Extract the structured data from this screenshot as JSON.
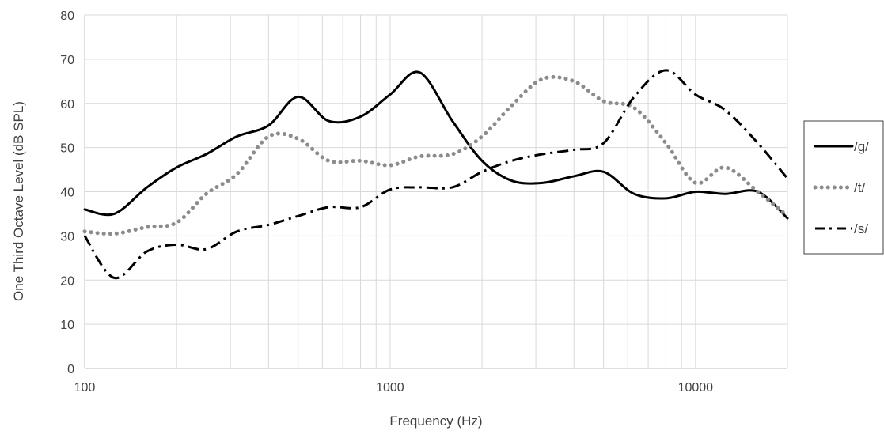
{
  "chart_data": {
    "type": "line",
    "title": "",
    "xlabel": "Frequency (Hz)",
    "ylabel": "One Third Octave Level (dB SPL)",
    "x_scale": "log",
    "xlim": [
      100,
      20000
    ],
    "ylim": [
      0,
      80
    ],
    "x_ticks": [
      100,
      1000,
      10000
    ],
    "y_ticks": [
      0,
      10,
      20,
      30,
      40,
      50,
      60,
      70,
      80
    ],
    "grid": true,
    "legend_position": "right",
    "series": [
      {
        "name": "/g/",
        "style": "solid",
        "color": "#000000",
        "x": [
          100,
          125,
          160,
          200,
          250,
          315,
          400,
          500,
          630,
          800,
          1000,
          1250,
          1600,
          2000,
          2500,
          3150,
          4000,
          5000,
          6300,
          8000,
          10000,
          12500,
          16000,
          20000
        ],
        "y": [
          36,
          35,
          41,
          45.5,
          48.5,
          52.5,
          55,
          61.5,
          56,
          57,
          62,
          67,
          56,
          47,
          42.5,
          42,
          43.5,
          44.5,
          39.5,
          38.5,
          40,
          39.5,
          40,
          34
        ]
      },
      {
        "name": "/t/",
        "style": "dotted",
        "color": "#8c8c8c",
        "x": [
          100,
          125,
          160,
          200,
          250,
          315,
          400,
          500,
          630,
          800,
          1000,
          1250,
          1600,
          2000,
          2500,
          3150,
          4000,
          5000,
          6300,
          8000,
          10000,
          12500,
          16000,
          20000
        ],
        "y": [
          31,
          30.5,
          32,
          33,
          39.5,
          44,
          52.5,
          52,
          47,
          47,
          46,
          48,
          48.5,
          52.5,
          59.5,
          65.5,
          65,
          60.5,
          59,
          51,
          42,
          45.5,
          40,
          34.5
        ]
      },
      {
        "name": "/s/",
        "style": "dashdot",
        "color": "#000000",
        "x": [
          100,
          125,
          160,
          200,
          250,
          315,
          400,
          500,
          630,
          800,
          1000,
          1250,
          1600,
          2000,
          2500,
          3150,
          4000,
          5000,
          6300,
          8000,
          10000,
          12500,
          16000,
          20000
        ],
        "y": [
          30,
          20.5,
          26.5,
          28,
          27,
          31,
          32.5,
          34.5,
          36.5,
          36.5,
          40.5,
          41,
          41,
          44.5,
          47,
          48.5,
          49.5,
          51,
          61.5,
          67.5,
          62,
          58.5,
          51,
          43
        ]
      }
    ]
  }
}
